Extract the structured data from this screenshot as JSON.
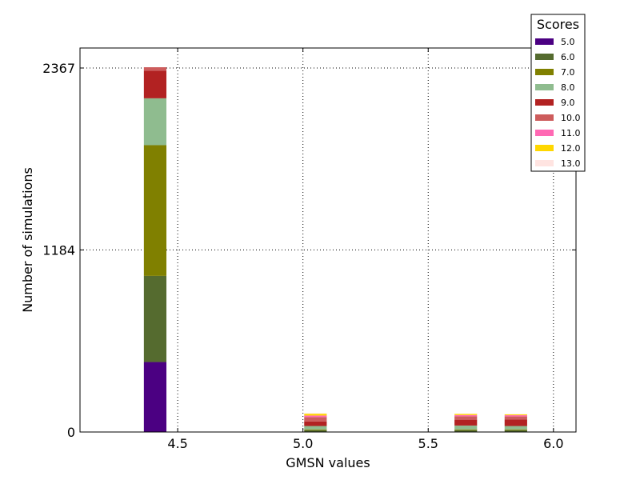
{
  "chart_data": {
    "type": "bar",
    "stacked": true,
    "xlabel": "GMSN values",
    "ylabel": "Number of simulations",
    "xlim": [
      4.11,
      6.09
    ],
    "ylim": [
      0,
      2367
    ],
    "xticks": [
      "4.5",
      "5.0",
      "5.5",
      "6.0"
    ],
    "xtick_values": [
      4.5,
      5.0,
      5.5,
      6.0
    ],
    "yticks": [
      "0",
      "1184",
      "2367"
    ],
    "ytick_values": [
      0,
      1184,
      2367
    ],
    "grid": true,
    "legend": {
      "title": "Scores",
      "placement": "top-right"
    },
    "bar_width": 0.09,
    "x": [
      4.41,
      5.05,
      5.65,
      5.85
    ],
    "series": [
      {
        "name": "5.0",
        "color": "#4b0082",
        "values": [
          455,
          2,
          2,
          2
        ]
      },
      {
        "name": "6.0",
        "color": "#556b2f",
        "values": [
          560,
          10,
          10,
          10
        ]
      },
      {
        "name": "7.0",
        "color": "#808000",
        "values": [
          850,
          5,
          5,
          5
        ]
      },
      {
        "name": "8.0",
        "color": "#8fbc8f",
        "values": [
          305,
          22,
          25,
          22
        ]
      },
      {
        "name": "9.0",
        "color": "#b22222",
        "values": [
          180,
          30,
          38,
          42
        ]
      },
      {
        "name": "10.0",
        "color": "#cd5c5c",
        "values": [
          22,
          28,
          22,
          20
        ]
      },
      {
        "name": "11.0",
        "color": "#ff69b4",
        "values": [
          0,
          10,
          8,
          8
        ]
      },
      {
        "name": "12.0",
        "color": "#ffd700",
        "values": [
          0,
          12,
          8,
          6
        ]
      },
      {
        "name": "13.0",
        "color": "#ffe4e1",
        "values": [
          0,
          3,
          2,
          2
        ]
      }
    ]
  }
}
